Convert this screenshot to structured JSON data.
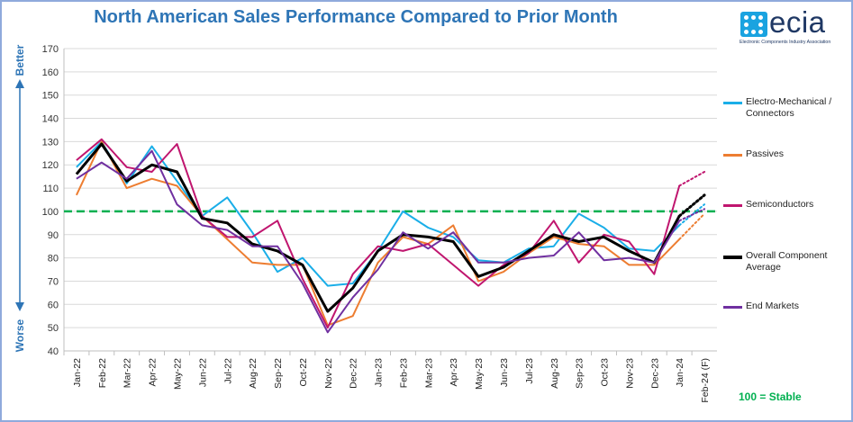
{
  "chart_data": {
    "type": "line",
    "title": "North American Sales Performance Compared to Prior Month",
    "categories": [
      "Jan-22",
      "Feb-22",
      "Mar-22",
      "Apr-22",
      "May-22",
      "Jun-22",
      "Jul-22",
      "Aug-22",
      "Sep-22",
      "Oct-22",
      "Nov-22",
      "Dec-22",
      "Jan-23",
      "Feb-23",
      "Mar-23",
      "Apr-23",
      "May-23",
      "Jun-23",
      "Jul-23",
      "Aug-23",
      "Sep-23",
      "Oct-23",
      "Nov-23",
      "Dec-23",
      "Jan-24",
      "Feb-24 (F)"
    ],
    "ylim": [
      40,
      170
    ],
    "yticks": [
      40,
      50,
      60,
      70,
      80,
      90,
      100,
      110,
      120,
      130,
      140,
      150,
      160,
      170
    ],
    "ylabel_top": "Better",
    "ylabel_bottom": "Worse",
    "reference_line": {
      "value": 100,
      "label": "100 = Stable"
    },
    "series": [
      {
        "name": "Electro-Mechanical / Connectors",
        "color": "#1aaee8",
        "width": 2,
        "values": [
          119,
          130,
          112,
          128,
          113,
          98,
          106,
          91,
          74,
          80,
          68,
          69,
          83,
          100,
          93,
          89,
          79,
          78,
          84,
          85,
          99,
          93,
          84,
          83,
          94,
          103
        ]
      },
      {
        "name": "Passives",
        "color": "#ed7d31",
        "width": 2,
        "values": [
          107,
          130,
          110,
          114,
          111,
          98,
          88,
          78,
          77,
          77,
          51,
          55,
          78,
          89,
          86,
          94,
          70,
          74,
          82,
          89,
          86,
          85,
          77,
          77,
          88,
          99
        ]
      },
      {
        "name": "Semiconductors",
        "color": "#c0166f",
        "width": 2,
        "values": [
          122,
          131,
          119,
          117,
          129,
          98,
          89,
          89,
          96,
          71,
          50,
          73,
          85,
          83,
          86,
          77,
          68,
          77,
          82,
          96,
          78,
          90,
          87,
          73,
          111,
          117
        ]
      },
      {
        "name": "Overall Component Average",
        "color": "#000000",
        "width": 3,
        "values": [
          116,
          129,
          113,
          120,
          117,
          97,
          95,
          86,
          83,
          77,
          57,
          67,
          83,
          90,
          89,
          87,
          72,
          76,
          83,
          90,
          87,
          89,
          83,
          78,
          98,
          107
        ]
      },
      {
        "name": "End Markets",
        "color": "#7030a0",
        "width": 2,
        "values": [
          114,
          121,
          114,
          126,
          103,
          94,
          92,
          85,
          85,
          69,
          48,
          63,
          75,
          91,
          84,
          91,
          78,
          78,
          80,
          81,
          91,
          79,
          80,
          78,
          96,
          101
        ]
      }
    ]
  },
  "logo": {
    "word": "ecia",
    "tagline": "Electronic Components Industry Association"
  }
}
